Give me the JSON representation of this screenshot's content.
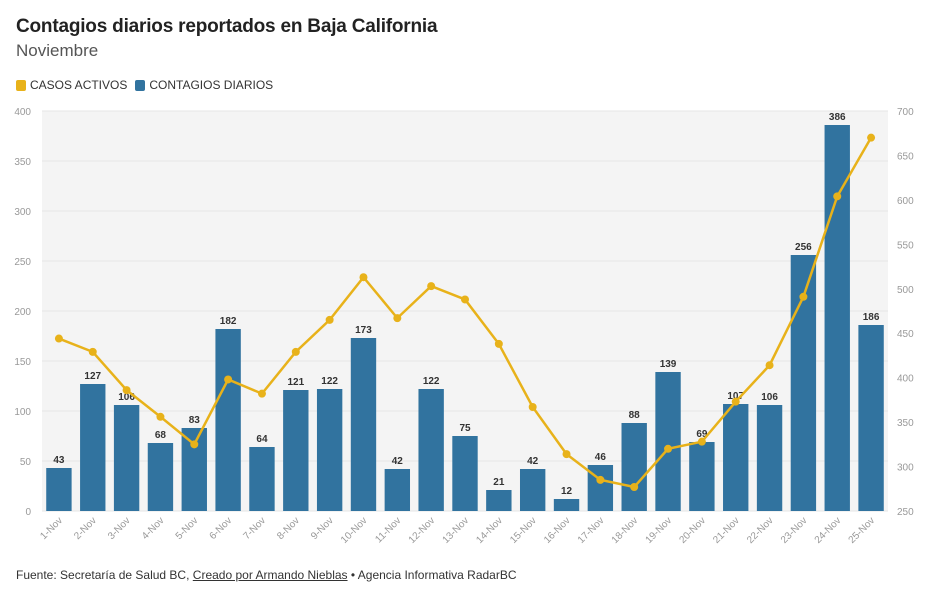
{
  "title": "Contagios diarios reportados en Baja California",
  "subtitle": "Noviembre",
  "legend": [
    {
      "label": "CASOS ACTIVOS",
      "color": "#e8b21a"
    },
    {
      "label": "CONTAGIOS DIARIOS",
      "color": "#31739f"
    }
  ],
  "footer": {
    "source": "Fuente: Secretaría de Salud BC,",
    "credit": "Creado por Armando Nieblas",
    "agency": "• Agencia Informativa RadarBC"
  },
  "chart_data": {
    "type": "bar",
    "categories": [
      "1-Nov",
      "2-Nov",
      "3-Nov",
      "4-Nov",
      "5-Nov",
      "6-Nov",
      "7-Nov",
      "8-Nov",
      "9-Nov",
      "10-Nov",
      "11-Nov",
      "12-Nov",
      "13-Nov",
      "14-Nov",
      "15-Nov",
      "16-Nov",
      "17-Nov",
      "18-Nov",
      "19-Nov",
      "20-Nov",
      "21-Nov",
      "22-Nov",
      "23-Nov",
      "24-Nov",
      "25-Nov"
    ],
    "series": [
      {
        "name": "CONTAGIOS DIARIOS",
        "type": "bar",
        "axis": "left",
        "color": "#31739f",
        "values": [
          43,
          127,
          106,
          68,
          83,
          182,
          64,
          121,
          122,
          173,
          42,
          122,
          75,
          21,
          42,
          12,
          46,
          88,
          139,
          69,
          107,
          106,
          256,
          386,
          186
        ]
      },
      {
        "name": "CASOS ACTIVOS",
        "type": "line",
        "axis": "right",
        "color": "#e8b21a",
        "values": [
          444,
          429,
          386,
          356,
          325,
          398,
          382,
          429,
          465,
          513,
          467,
          503,
          488,
          438,
          367,
          314,
          285,
          277,
          320,
          328,
          373,
          414,
          491,
          604,
          670
        ]
      }
    ],
    "yleft": {
      "min": 0,
      "max": 400,
      "ticks": [
        0,
        50,
        100,
        150,
        200,
        250,
        300,
        350,
        400
      ]
    },
    "yright": {
      "min": 250,
      "max": 700,
      "ticks": [
        250,
        300,
        350,
        400,
        450,
        500,
        550,
        600,
        650,
        700
      ]
    },
    "grid": true,
    "legend_position": "top-left"
  }
}
